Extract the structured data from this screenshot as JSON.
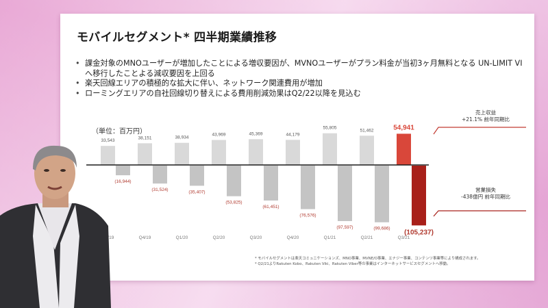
{
  "slide": {
    "title": "モバイルセグメント* 四半期業績推移",
    "bullets": [
      "課金対象のMNOユーザーが増加したことによる増収要因が、MVNOユーザーがプラン料金が当初3ヶ月無料となる UN-LIMIT VIへ移行したことよる減収要因を上回る",
      "楽天回線エリアの積極的な拡大に伴い、ネットワーク関連費用が増加",
      "ローミングエリアの自社回線切り替えによる費用削減効果はQ2/22以降を見込む"
    ],
    "unit_label": "（単位：百万円）",
    "callout_revenue": {
      "line1": "売上収益",
      "line2": "+21.1% 前年同期比"
    },
    "callout_loss": {
      "line1": "営業損失",
      "line2": "-438億円 前年同期比"
    },
    "footnotes": [
      "* モバイルセグメントは楽天コミュニケーションズ、MNO事業、MVNE/O事業、エナジー事業、コンテンツ事業等により構成されます。",
      "* Q2/21よりRakuten Kobo、Rakuten Viki、Rakuten Viber等の事業はインターネットサービスセグメントへ移動。"
    ],
    "colors": {
      "revenue_bar": "#d9d9d9",
      "loss_bar": "#c4c4c4",
      "highlight_revenue": "#d9473a",
      "highlight_loss": "#a8201a",
      "loss_label": "#b0392e",
      "axis": "#1a1a1a"
    }
  },
  "chart_data": {
    "type": "bar",
    "title": "モバイルセグメント* 四半期業績推移",
    "xlabel": "",
    "ylabel": "百万円",
    "categories": [
      "Q3/19",
      "Q4/19",
      "Q1/20",
      "Q2/20",
      "Q3/20",
      "Q4/20",
      "Q1/21",
      "Q2/21",
      "Q3/21"
    ],
    "series": [
      {
        "name": "売上収益",
        "values": [
          33543,
          38151,
          38934,
          43969,
          45369,
          44179,
          55805,
          51462,
          54941
        ],
        "labels": [
          "33,543",
          "38,151",
          "38,934",
          "43,969",
          "45,369",
          "44,179",
          "55,805",
          "51,462",
          "54,941"
        ]
      },
      {
        "name": "営業損失",
        "values": [
          -16944,
          -31524,
          -35407,
          -53825,
          -61451,
          -76576,
          -97597,
          -99686,
          -105237
        ],
        "labels": [
          "(16,944)",
          "(31,524)",
          "(35,407)",
          "(53,825)",
          "(61,451)",
          "(76,576)",
          "(97,597)",
          "(99,686)",
          "(105,237)"
        ]
      }
    ],
    "highlight_category": "Q3/21",
    "ylim": [
      -110000,
      60000
    ],
    "grid": false,
    "legend": "none"
  }
}
